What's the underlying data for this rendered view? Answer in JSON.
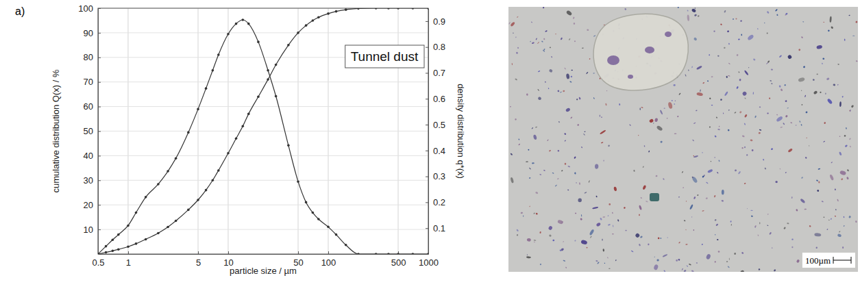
{
  "label": "a)",
  "chart_data": {
    "type": "line",
    "annotation": "Tunnel dust",
    "x_label": "particle size / µm",
    "y_label": "cumulative distribution Q(x) / %",
    "y2_label": "density distribution q*(x)",
    "log": "x",
    "grid": true,
    "xlim": [
      0.5,
      1000
    ],
    "xticks": [
      0.5,
      1,
      5,
      10,
      50,
      100,
      500,
      1000
    ],
    "ylim": [
      0,
      100
    ],
    "yticks": [
      10,
      20,
      30,
      40,
      50,
      60,
      70,
      80,
      90,
      100
    ],
    "y2lim": [
      0,
      0.95
    ],
    "y2ticks": [
      0.1,
      0.2,
      0.3,
      0.4,
      0.5,
      0.6,
      0.7,
      0.8,
      0.9
    ],
    "x": [
      0.5,
      0.6,
      0.7,
      0.8,
      1,
      1.2,
      1.5,
      2,
      2.5,
      3,
      4,
      5,
      6,
      7,
      8,
      10,
      12,
      14,
      16,
      20,
      25,
      30,
      40,
      50,
      60,
      70,
      80,
      100,
      120,
      150,
      200,
      300,
      400,
      500,
      700,
      1000
    ],
    "series": [
      {
        "color": "#333333",
        "marker": "circle",
        "line_style": "solid",
        "values": [
          0,
          0.7,
          1.3,
          1.9,
          3,
          4.2,
          6,
          8.5,
          11,
          13.5,
          18,
          22,
          26,
          30,
          34,
          41,
          47,
          52,
          57,
          64,
          71,
          77,
          85,
          90,
          93,
          95,
          96.3,
          97.8,
          98.7,
          99.4,
          99.9,
          100,
          100,
          100,
          100,
          100
        ]
      },
      {
        "color": "#333333",
        "marker": "circle",
        "line_style": "solid",
        "axis": "y2",
        "values": [
          0,
          0.03,
          0.055,
          0.075,
          0.11,
          0.16,
          0.22,
          0.27,
          0.32,
          0.37,
          0.47,
          0.56,
          0.64,
          0.71,
          0.77,
          0.85,
          0.89,
          0.905,
          0.89,
          0.82,
          0.71,
          0.61,
          0.42,
          0.28,
          0.2,
          0.16,
          0.135,
          0.105,
          0.075,
          0.035,
          0,
          0,
          0,
          0,
          0,
          0
        ]
      }
    ]
  },
  "image": {
    "scale_bar": "100µm"
  }
}
